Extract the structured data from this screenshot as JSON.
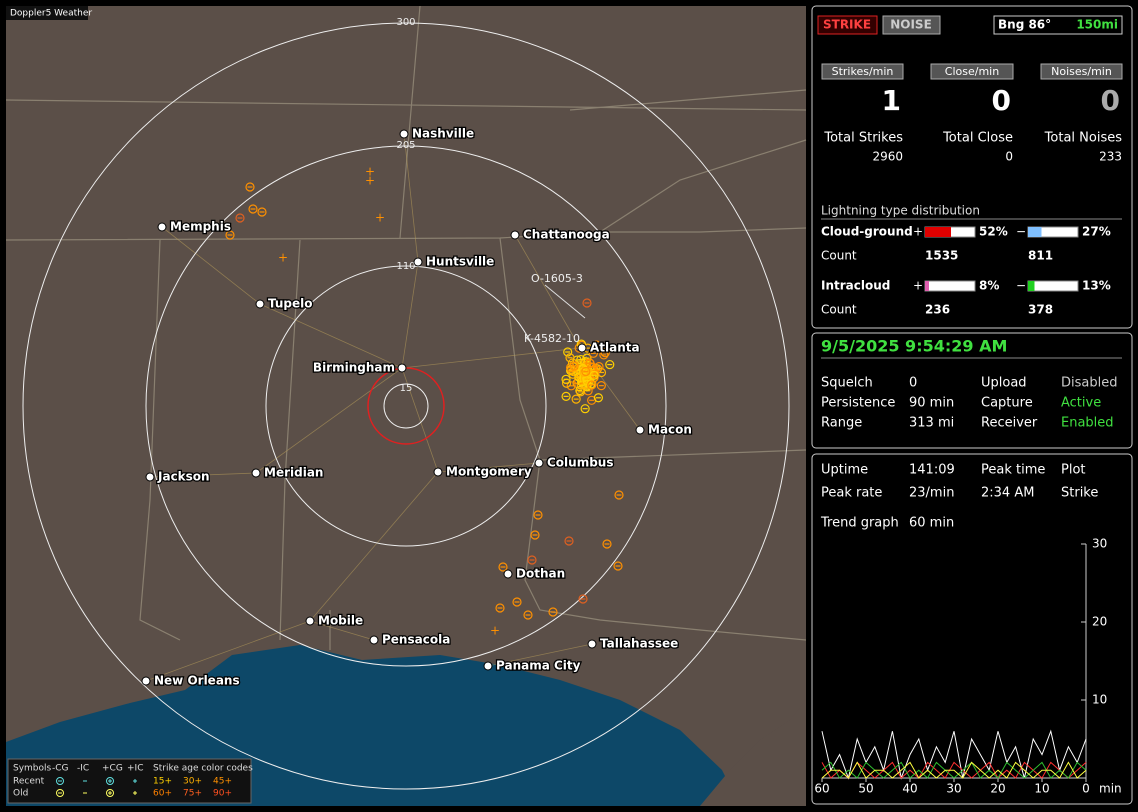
{
  "app_title": "Doppler5 Weather",
  "map": {
    "range_labels": [
      "300",
      "205",
      "110",
      "15"
    ],
    "cities": [
      "Nashville",
      "Memphis",
      "Chattanooga",
      "Huntsville",
      "Tupelo",
      "Atlanta",
      "Birmingham",
      "Macon",
      "Jackson",
      "Meridian",
      "Montgomery",
      "Columbus",
      "Dothan",
      "Mobile",
      "Pensacola",
      "Tallahassee",
      "Panama City",
      "New Orleans"
    ],
    "strike_tags": [
      "O-1605-3",
      "K-4582-10"
    ]
  },
  "legend": {
    "symbols_header": "Symbols",
    "columns": [
      "-CG",
      "-IC",
      "+CG",
      "+IC"
    ],
    "age_header": "Strike age color codes",
    "rows": [
      {
        "label": "Recent",
        "ages": [
          "15+",
          "30+",
          "45+"
        ]
      },
      {
        "label": "Old",
        "ages": [
          "60+",
          "75+",
          "90+"
        ]
      }
    ]
  },
  "status": {
    "buttons": [
      "STRIKE",
      "NOISE"
    ],
    "bearing": "Bng 86°",
    "range": "150mi",
    "rates": [
      {
        "label": "Strikes/min",
        "value": 1
      },
      {
        "label": "Close/min",
        "value": 0
      },
      {
        "label": "Noises/min",
        "value": 0
      }
    ],
    "totals": [
      {
        "label": "Total Strikes",
        "value": 2960
      },
      {
        "label": "Total Close",
        "value": 0
      },
      {
        "label": "Total Noises",
        "value": 233
      }
    ]
  },
  "distribution": {
    "title": "Lightning type distribution",
    "count_label": "Count",
    "types": [
      {
        "name": "Cloud-ground",
        "positive": {
          "sign": "+",
          "percent": "52%",
          "count": 1535,
          "color": "#e00000"
        },
        "negative": {
          "sign": "−",
          "percent": "27%",
          "count": 811,
          "color": "#80c0ff"
        }
      },
      {
        "name": "Intracloud",
        "positive": {
          "sign": "+",
          "percent": "8%",
          "count": 236,
          "color": "#e060b0"
        },
        "negative": {
          "sign": "−",
          "percent": "13%",
          "count": 378,
          "color": "#20d020"
        }
      }
    ]
  },
  "info": {
    "datetime": "9/5/2025 9:54:29 AM",
    "rows": [
      [
        "Squelch",
        0,
        "Upload",
        "Disabled"
      ],
      [
        "Persistence",
        "90 min",
        "Capture",
        "Active"
      ],
      [
        "Range",
        "313 mi",
        "Receiver",
        "Enabled"
      ]
    ]
  },
  "uptime": {
    "rows": [
      [
        "Uptime",
        "141:09",
        "Peak time",
        "Plot"
      ],
      [
        "Peak rate",
        "23/min",
        "2:34 AM",
        "Strike"
      ]
    ],
    "trend_label": "Trend graph",
    "trend_span": "60 min"
  },
  "trend_graph": {
    "xlim": [
      60,
      0
    ],
    "ylim": [
      0,
      30
    ],
    "xticks": [
      60,
      50,
      40,
      30,
      20,
      10,
      0
    ],
    "yticks": [
      10,
      20,
      30
    ],
    "x_unit": "min",
    "x": [
      60,
      58,
      56,
      54,
      52,
      50,
      48,
      46,
      44,
      42,
      40,
      38,
      36,
      34,
      32,
      30,
      28,
      26,
      24,
      22,
      20,
      18,
      16,
      14,
      12,
      10,
      8,
      6,
      4,
      2,
      0
    ],
    "series": [
      {
        "color": "#ffffff",
        "values": [
          6,
          1,
          3,
          0,
          5,
          2,
          4,
          1,
          6,
          0,
          3,
          5,
          1,
          4,
          2,
          6,
          0,
          5,
          3,
          1,
          6,
          2,
          4,
          0,
          5,
          3,
          6,
          1,
          4,
          2,
          5
        ]
      },
      {
        "color": "#ff3030",
        "values": [
          2,
          0,
          1,
          0,
          2,
          1,
          0,
          1,
          2,
          0,
          1,
          0,
          2,
          1,
          0,
          2,
          1,
          0,
          1,
          2,
          0,
          1,
          0,
          2,
          1,
          0,
          2,
          1,
          0,
          1,
          2
        ]
      },
      {
        "color": "#30c030",
        "values": [
          1,
          2,
          0,
          1,
          0,
          2,
          1,
          0,
          1,
          2,
          0,
          1,
          0,
          2,
          1,
          0,
          1,
          2,
          0,
          1,
          0,
          2,
          1,
          0,
          1,
          2,
          0,
          1,
          0,
          2,
          1
        ]
      },
      {
        "color": "#ffff40",
        "values": [
          0,
          1,
          1,
          0,
          2,
          0,
          1,
          1,
          0,
          1,
          2,
          0,
          1,
          0,
          1,
          1,
          0,
          2,
          1,
          0,
          1,
          0,
          2,
          1,
          0,
          1,
          1,
          0,
          2,
          0,
          1
        ]
      }
    ]
  }
}
